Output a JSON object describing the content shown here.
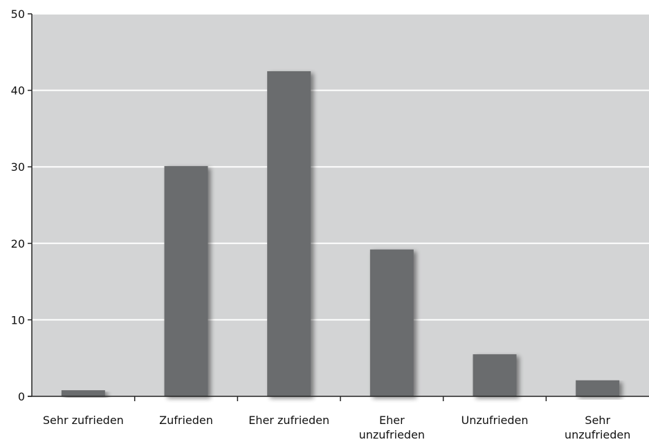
{
  "chart_data": {
    "type": "bar",
    "categories": [
      [
        "Sehr zufrieden"
      ],
      [
        "Zufrieden"
      ],
      [
        "Eher zufrieden"
      ],
      [
        "Eher",
        "unzufrieden"
      ],
      [
        "Unzufrieden"
      ],
      [
        "Sehr",
        "unzufrieden"
      ]
    ],
    "values": [
      0.8,
      30.1,
      42.5,
      19.2,
      5.5,
      2.1
    ],
    "ylim": [
      0,
      50
    ],
    "yticks": [
      0,
      10,
      20,
      30,
      40,
      50
    ],
    "grid": true,
    "title": "",
    "xlabel": "",
    "ylabel": ""
  },
  "colors": {
    "plot_background": "#d3d4d5",
    "bar": "#6b6c6e",
    "grid": "#ffffff",
    "axis": "#222222"
  }
}
